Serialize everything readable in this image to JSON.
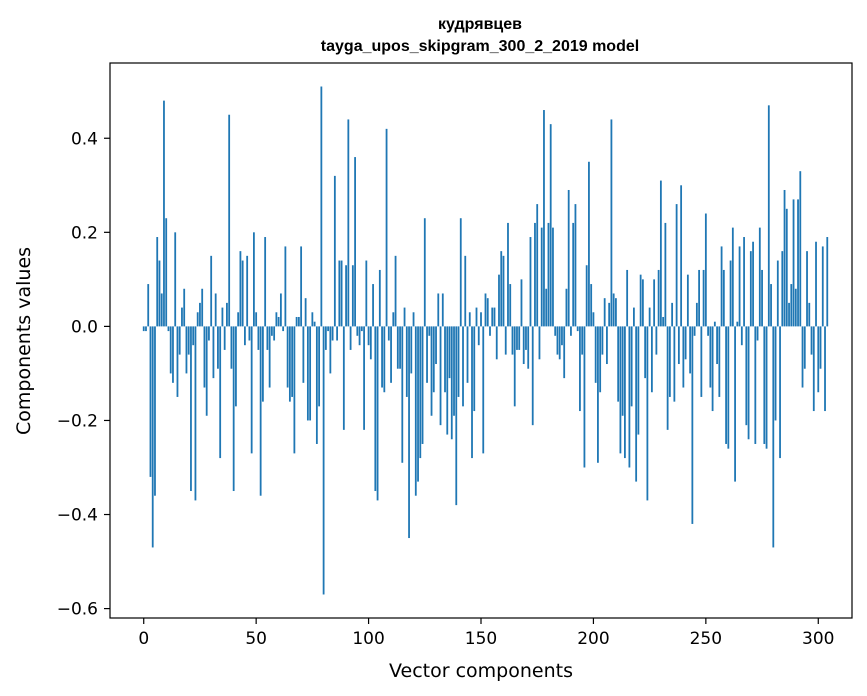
{
  "chart_data": {
    "type": "bar",
    "title_line1": "кудрявцев",
    "title_line2": "tayga_upos_skipgram_300_2_2019 model",
    "xlabel": "Vector components",
    "ylabel": "Components values",
    "xlim": [
      -15,
      315
    ],
    "ylim": [
      -0.62,
      0.56
    ],
    "xticks": [
      0,
      50,
      100,
      150,
      200,
      250,
      300
    ],
    "xtick_labels": [
      "0",
      "50",
      "100",
      "150",
      "200",
      "250",
      "300"
    ],
    "yticks": [
      -0.6,
      -0.4,
      -0.2,
      0.0,
      0.2,
      0.4
    ],
    "ytick_labels": [
      "−0.6",
      "−0.4",
      "−0.2",
      "0.0",
      "0.2",
      "0.4"
    ],
    "bar_color": "#1f77b4",
    "values": [
      -0.01,
      -0.01,
      0.09,
      -0.32,
      -0.47,
      -0.36,
      0.19,
      0.14,
      0.07,
      0.48,
      0.23,
      -0.01,
      -0.1,
      -0.12,
      0.2,
      -0.15,
      -0.06,
      0.04,
      0.08,
      -0.1,
      -0.06,
      -0.35,
      -0.04,
      -0.37,
      0.03,
      0.05,
      0.08,
      -0.13,
      -0.19,
      -0.03,
      0.15,
      -0.11,
      0.07,
      -0.09,
      -0.28,
      0.04,
      -0.05,
      0.05,
      0.45,
      -0.09,
      -0.35,
      -0.17,
      0.03,
      0.16,
      0.14,
      -0.04,
      0.15,
      -0.03,
      -0.27,
      0.2,
      0.03,
      -0.05,
      -0.36,
      -0.16,
      0.19,
      -0.05,
      -0.13,
      -0.02,
      -0.03,
      0.03,
      0.02,
      0.07,
      -0.01,
      0.17,
      -0.13,
      -0.16,
      -0.15,
      -0.27,
      0.02,
      0.02,
      0.17,
      -0.12,
      0.06,
      -0.2,
      -0.2,
      0.03,
      0.01,
      -0.25,
      -0.17,
      0.51,
      -0.57,
      -0.05,
      -0.01,
      -0.1,
      -0.03,
      0.32,
      -0.03,
      0.14,
      0.14,
      -0.22,
      0.13,
      0.44,
      -0.05,
      0.13,
      0.36,
      -0.02,
      -0.04,
      -0.01,
      -0.22,
      0.14,
      -0.04,
      -0.07,
      0.09,
      -0.35,
      -0.37,
      0.12,
      -0.13,
      -0.14,
      0.42,
      -0.03,
      -0.12,
      0.03,
      0.15,
      -0.09,
      -0.09,
      -0.29,
      0.04,
      -0.15,
      -0.45,
      -0.1,
      0.03,
      -0.36,
      -0.33,
      -0.28,
      -0.25,
      0.23,
      -0.12,
      -0.02,
      -0.19,
      -0.14,
      -0.08,
      0.07,
      -0.21,
      0.07,
      -0.14,
      -0.23,
      -0.11,
      -0.24,
      -0.19,
      -0.38,
      -0.15,
      0.23,
      -0.17,
      0.15,
      -0.12,
      0.03,
      -0.28,
      -0.18,
      0.04,
      -0.04,
      0.03,
      -0.27,
      0.07,
      0.06,
      -0.02,
      0.04,
      0.04,
      -0.07,
      0.11,
      0.16,
      0.15,
      -0.06,
      0.22,
      0.09,
      -0.06,
      -0.17,
      -0.05,
      -0.05,
      0.1,
      -0.08,
      -0.05,
      -0.09,
      0.19,
      -0.21,
      0.22,
      0.26,
      -0.07,
      0.21,
      0.46,
      0.08,
      0.22,
      0.43,
      0.21,
      -0.02,
      -0.06,
      -0.07,
      -0.04,
      -0.11,
      0.08,
      0.29,
      -0.02,
      0.22,
      0.26,
      -0.01,
      -0.18,
      -0.06,
      -0.3,
      0.13,
      0.35,
      0.09,
      0.03,
      -0.12,
      -0.29,
      -0.14,
      -0.06,
      0.06,
      -0.08,
      0.05,
      0.44,
      0.07,
      0.06,
      -0.16,
      -0.27,
      -0.19,
      -0.28,
      0.12,
      -0.3,
      -0.17,
      0.04,
      -0.33,
      -0.23,
      0.11,
      0.1,
      -0.11,
      -0.37,
      0.04,
      -0.14,
      0.1,
      -0.06,
      0.12,
      0.31,
      0.02,
      0.22,
      -0.22,
      -0.15,
      0.05,
      -0.16,
      0.26,
      -0.08,
      0.3,
      -0.13,
      -0.07,
      0.11,
      -0.1,
      -0.42,
      -0.02,
      0.05,
      0.12,
      -0.15,
      0.12,
      0.24,
      -0.02,
      -0.13,
      -0.18,
      0.01,
      -0.08,
      -0.15,
      0.17,
      0.12,
      -0.25,
      -0.26,
      0.14,
      0.21,
      -0.33,
      0.01,
      0.17,
      -0.04,
      0.19,
      -0.21,
      -0.24,
      0.16,
      0.18,
      -0.25,
      -0.03,
      0.21,
      0.12,
      -0.25,
      -0.26,
      0.47,
      0.09,
      -0.47,
      -0.2,
      0.14,
      -0.28,
      0.16,
      0.29,
      0.25,
      0.05,
      0.09,
      0.27,
      0.08,
      0.27,
      0.33,
      -0.13,
      -0.09,
      0.16,
      0.05,
      -0.06,
      -0.18,
      0.18,
      -0.14,
      -0.09,
      0.17,
      -0.18,
      0.19
    ]
  }
}
